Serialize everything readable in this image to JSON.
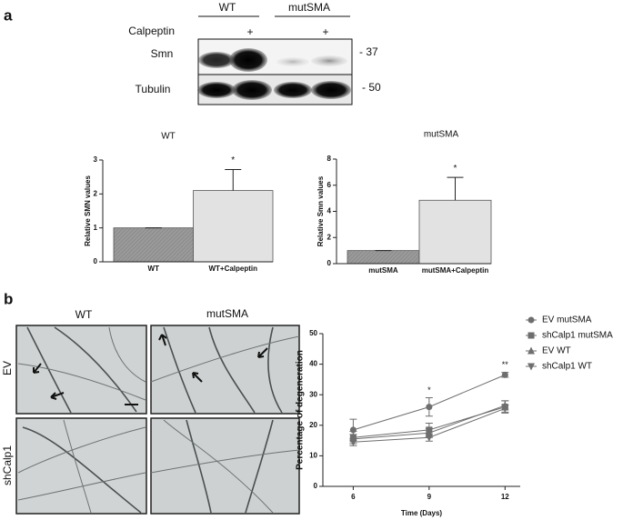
{
  "panel_a": {
    "label": "a",
    "groups": [
      "WT",
      "mutSMA"
    ],
    "treatment": "Calpeptin",
    "treatment_marks": [
      "+",
      "+"
    ],
    "rows": [
      "Smn",
      "Tubulin"
    ],
    "markers": [
      "- 37",
      "- 50"
    ]
  },
  "panel_b": {
    "label": "b",
    "columns": [
      "WT",
      "mutSMA"
    ],
    "rows": [
      "EV",
      "shCalp1"
    ]
  },
  "chart_data": [
    {
      "type": "bar",
      "title": "WT",
      "y_label": "Relative SMN values",
      "categories": [
        "WT",
        "WT+Calpeptin"
      ],
      "values": [
        1,
        2.1
      ],
      "errors": [
        0,
        0.62
      ],
      "colors": [
        "#a3a3a3",
        "#e2e2e2"
      ],
      "ylim": [
        0,
        3
      ],
      "yticks": [
        0,
        1,
        2,
        3
      ],
      "annotation": "*"
    },
    {
      "type": "bar",
      "title": "mutSMA",
      "y_label": "Relative Smn values",
      "categories": [
        "mutSMA",
        "mutSMA+Calpeptin"
      ],
      "values": [
        1,
        4.85
      ],
      "errors": [
        0,
        1.75
      ],
      "colors": [
        "#a3a3a3",
        "#e2e2e2"
      ],
      "ylim": [
        0,
        8
      ],
      "yticks": [
        0,
        2,
        4,
        6,
        8
      ],
      "annotation": "*"
    },
    {
      "type": "line",
      "x_label": "Time (Days)",
      "y_label": "Percentage of degeneration",
      "x": [
        6,
        9,
        12
      ],
      "xlim": [
        4.8,
        12.6
      ],
      "xticks": [
        6,
        9,
        12
      ],
      "ylim": [
        0,
        50
      ],
      "yticks": [
        0,
        10,
        20,
        30,
        40,
        50
      ],
      "point_labels": [
        null,
        "*",
        "**"
      ],
      "legend": "right",
      "series": [
        {
          "name": "EV mutSMA",
          "color": "#6e6e6e",
          "marker": "circle",
          "values": [
            18.5,
            26,
            36.5
          ],
          "errors": [
            3.5,
            3,
            0.8
          ]
        },
        {
          "name": "shCalp1 mutSMA",
          "color": "#6e6e6e",
          "marker": "square",
          "values": [
            16,
            18.5,
            26
          ],
          "errors": [
            2,
            2.2,
            2
          ]
        },
        {
          "name": "EV WT",
          "color": "#6e6e6e",
          "marker": "triangle-up",
          "values": [
            15.5,
            17.5,
            26.5
          ],
          "errors": [
            1.5,
            1.5,
            1.5
          ]
        },
        {
          "name": "shCalp1 WT",
          "color": "#6e6e6e",
          "marker": "triangle-down",
          "values": [
            14.5,
            16,
            25.5
          ],
          "errors": [
            1.2,
            1.2,
            1.2
          ]
        }
      ]
    }
  ]
}
